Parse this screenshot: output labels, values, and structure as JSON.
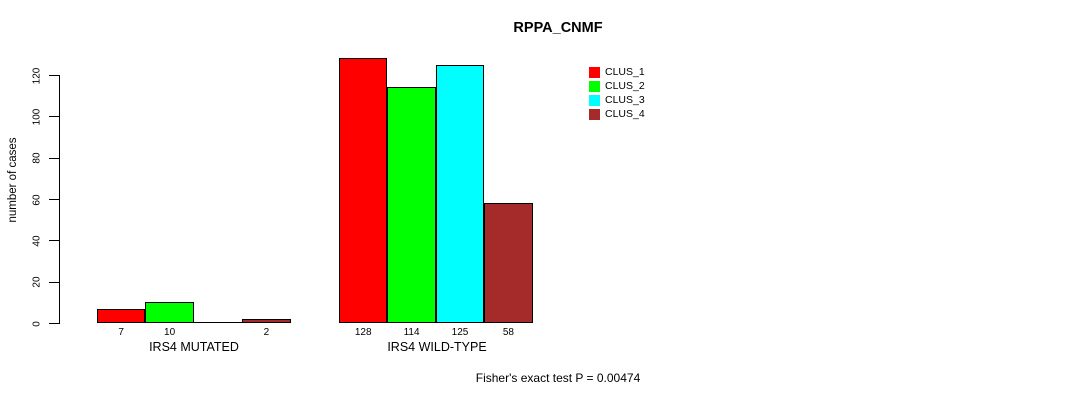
{
  "chart_data": {
    "type": "bar",
    "title": "RPPA_CNMF",
    "ylabel": "number of cases",
    "xlabel": "",
    "ylim": [
      0,
      120
    ],
    "yticks": [
      0,
      20,
      40,
      60,
      80,
      100,
      120
    ],
    "categories": [
      "IRS4 MUTATED",
      "IRS4 WILD-TYPE"
    ],
    "series": [
      {
        "name": "CLUS_1",
        "color": "#FF0000",
        "values": [
          7,
          128
        ]
      },
      {
        "name": "CLUS_2",
        "color": "#00FF00",
        "values": [
          10,
          114
        ]
      },
      {
        "name": "CLUS_3",
        "color": "#00FFFF",
        "values": [
          0,
          125
        ]
      },
      {
        "name": "CLUS_4",
        "color": "#A52A2A",
        "values": [
          2,
          58
        ]
      }
    ],
    "bar_value_labels_shown": [
      "7",
      "10",
      "2",
      "128",
      "114",
      "125",
      "58"
    ],
    "legend": {
      "position": "top-right",
      "entries": [
        "CLUS_1",
        "CLUS_2",
        "CLUS_3",
        "CLUS_4"
      ]
    },
    "annotation": "Fisher's exact test P = 0.00474",
    "grid": false,
    "background": "#FFFFFF",
    "axis_color": "#000000"
  }
}
